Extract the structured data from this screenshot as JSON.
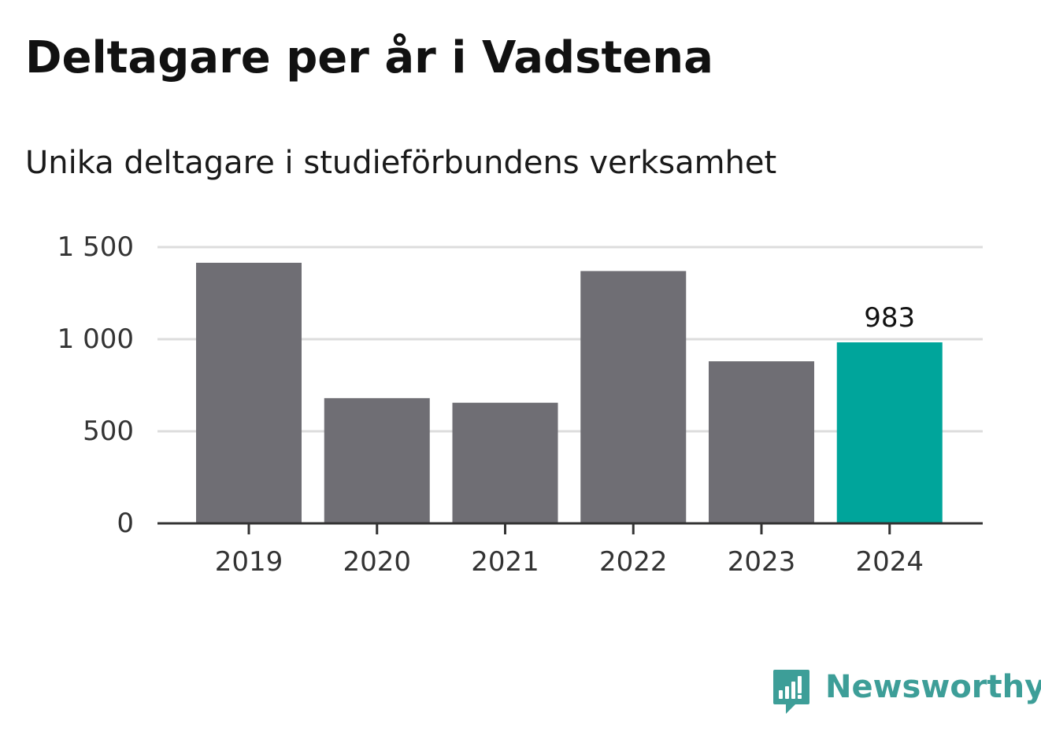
{
  "title": "Deltagare per år i Vadstena",
  "subtitle": "Unika deltagare i studieförbundens verksamhet",
  "brand": {
    "name": "Newsworthy",
    "icon": "newsworthy-logo-icon",
    "color": "#3d9e98"
  },
  "colors": {
    "bar": "#6f6e74",
    "highlight": "#00a59b",
    "grid": "#dcdcdc",
    "axis": "#333333",
    "tick_text": "#333333"
  },
  "chart_data": {
    "type": "bar",
    "categories": [
      "2019",
      "2020",
      "2021",
      "2022",
      "2023",
      "2024"
    ],
    "values": [
      1415,
      680,
      655,
      1370,
      880,
      983
    ],
    "highlight_index": 5,
    "data_labels": [
      {
        "index": 5,
        "text": "983"
      }
    ],
    "ylim": [
      0,
      1500
    ],
    "yticks": [
      0,
      500,
      1000,
      1500
    ],
    "ytick_labels": [
      "0",
      "500",
      "1 000",
      "1 500"
    ],
    "grid": true,
    "legend": "none"
  }
}
